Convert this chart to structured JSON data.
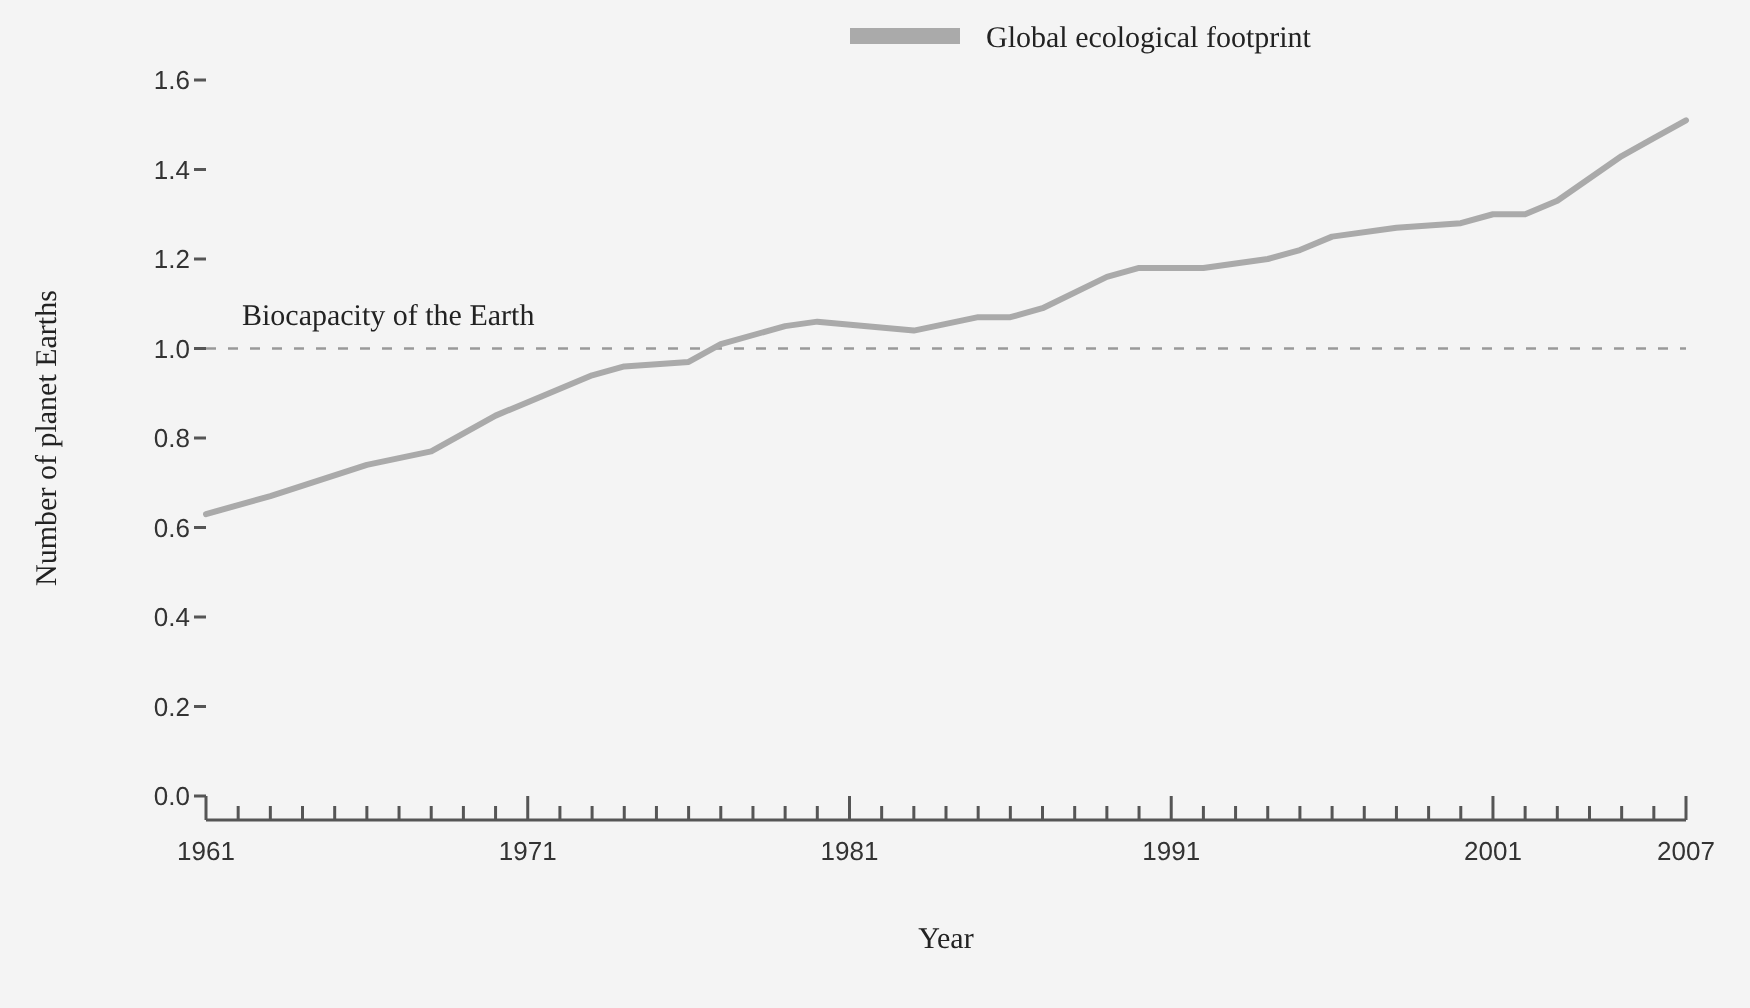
{
  "chart_data": {
    "type": "line",
    "xlabel": "Year",
    "ylabel": "Number of planet Earths",
    "x": [
      1961,
      1963,
      1966,
      1968,
      1970,
      1971,
      1973,
      1974,
      1976,
      1977,
      1979,
      1980,
      1983,
      1985,
      1986,
      1987,
      1989,
      1990,
      1992,
      1994,
      1995,
      1996,
      1998,
      2000,
      2001,
      2002,
      2003,
      2005,
      2006,
      2007
    ],
    "series": [
      {
        "name": "Global ecological footprint",
        "color": "#aaaaaa",
        "values": [
          0.63,
          0.67,
          0.74,
          0.77,
          0.85,
          0.88,
          0.94,
          0.96,
          0.97,
          1.01,
          1.05,
          1.06,
          1.04,
          1.07,
          1.07,
          1.09,
          1.16,
          1.18,
          1.18,
          1.2,
          1.22,
          1.25,
          1.27,
          1.28,
          1.3,
          1.3,
          1.33,
          1.43,
          1.47,
          1.51
        ]
      }
    ],
    "xlim": [
      1961,
      2007
    ],
    "xticks": [
      1961,
      {
        "value": 1962,
        "label": null
      },
      {
        "value": 1963,
        "label": null
      },
      {
        "value": 1964,
        "label": null
      },
      {
        "value": 1965,
        "label": null
      },
      {
        "value": 1966,
        "label": null
      },
      {
        "value": 1967,
        "label": null
      },
      {
        "value": 1968,
        "label": null
      },
      {
        "value": 1969,
        "label": null
      },
      {
        "value": 1970,
        "label": null
      },
      1971,
      {
        "value": 1972,
        "label": null
      },
      {
        "value": 1973,
        "label": null
      },
      {
        "value": 1974,
        "label": null
      },
      {
        "value": 1975,
        "label": null
      },
      {
        "value": 1976,
        "label": null
      },
      {
        "value": 1977,
        "label": null
      },
      {
        "value": 1978,
        "label": null
      },
      {
        "value": 1979,
        "label": null
      },
      {
        "value": 1980,
        "label": null
      },
      1981,
      {
        "value": 1982,
        "label": null
      },
      {
        "value": 1983,
        "label": null
      },
      {
        "value": 1984,
        "label": null
      },
      {
        "value": 1985,
        "label": null
      },
      {
        "value": 1986,
        "label": null
      },
      {
        "value": 1987,
        "label": null
      },
      {
        "value": 1988,
        "label": null
      },
      {
        "value": 1989,
        "label": null
      },
      {
        "value": 1990,
        "label": null
      },
      1991,
      {
        "value": 1992,
        "label": null
      },
      {
        "value": 1993,
        "label": null
      },
      {
        "value": 1994,
        "label": null
      },
      {
        "value": 1995,
        "label": null
      },
      {
        "value": 1996,
        "label": null
      },
      {
        "value": 1997,
        "label": null
      },
      {
        "value": 1998,
        "label": null
      },
      {
        "value": 1999,
        "label": null
      },
      {
        "value": 2000,
        "label": null
      },
      2001,
      {
        "value": 2002,
        "label": null
      },
      {
        "value": 2003,
        "label": null
      },
      {
        "value": 2004,
        "label": null
      },
      {
        "value": 2005,
        "label": null
      },
      {
        "value": 2006,
        "label": null
      },
      2007
    ],
    "ylim": [
      0,
      1.6
    ],
    "yticks": [
      {
        "value": 0,
        "label": "0.0"
      },
      {
        "value": 0.2,
        "label": "0.2"
      },
      {
        "value": 0.4,
        "label": "0.4"
      },
      {
        "value": 0.6,
        "label": "0.6"
      },
      {
        "value": 0.8,
        "label": "0.8"
      },
      {
        "value": 1,
        "label": "1.0"
      },
      {
        "value": 1.2,
        "label": "1.2"
      },
      {
        "value": 1.4,
        "label": "1.4"
      },
      {
        "value": 1.6,
        "label": "1.6"
      }
    ],
    "ref_lines": [
      {
        "axis": "y",
        "value": 1,
        "label": "Biocapacity of the Earth",
        "color": "#999999",
        "line_style": "dashed"
      }
    ],
    "legend": "top",
    "marker": "none",
    "line_style": "solid",
    "grid": false
  }
}
